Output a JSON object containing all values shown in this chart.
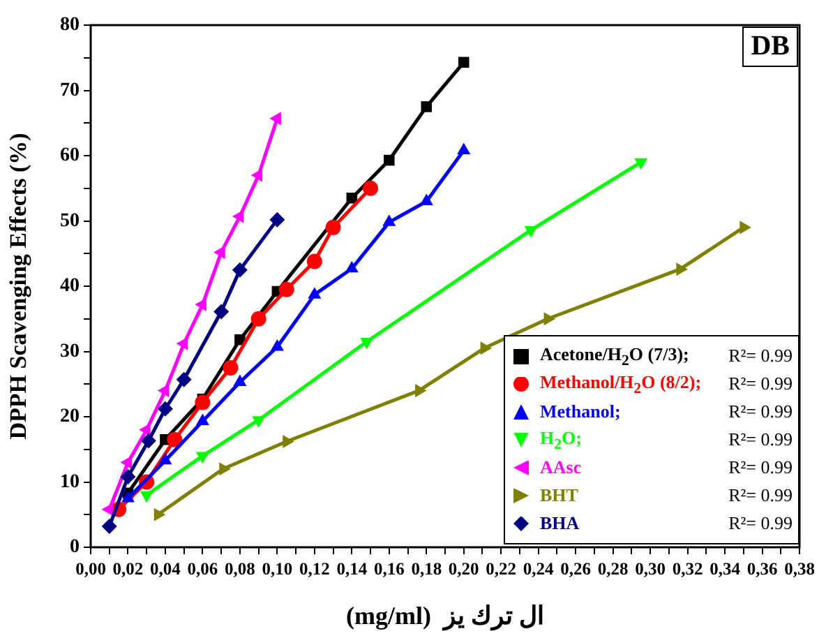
{
  "chart_data": {
    "type": "line",
    "xlabel": "(mg/ml)  ال ترك يز",
    "ylabel": "DPPH Scavenging Effects (%)",
    "annotations": [
      "DB",
      "R²= 0.99",
      "R²= 0.99",
      "R²= 0.99",
      "R²= 0.99",
      "R²= 0.99",
      "R²= 0.99",
      "R²= 0.99"
    ],
    "xlim": [
      0,
      0.38
    ],
    "ylim": [
      0,
      80
    ],
    "xticks": [
      {
        "value": 0,
        "label": "0,00"
      },
      {
        "value": 0.01,
        "label": null
      },
      {
        "value": 0.02,
        "label": "0,02"
      },
      {
        "value": 0.03,
        "label": null
      },
      {
        "value": 0.04,
        "label": "0,04"
      },
      {
        "value": 0.05,
        "label": null
      },
      {
        "value": 0.06,
        "label": "0,06"
      },
      {
        "value": 0.07,
        "label": null
      },
      {
        "value": 0.08,
        "label": "0,08"
      },
      {
        "value": 0.09,
        "label": null
      },
      {
        "value": 0.1,
        "label": "0,10"
      },
      {
        "value": 0.11,
        "label": null
      },
      {
        "value": 0.12,
        "label": "0,12"
      },
      {
        "value": 0.13,
        "label": null
      },
      {
        "value": 0.14,
        "label": "0,14"
      },
      {
        "value": 0.15,
        "label": null
      },
      {
        "value": 0.16,
        "label": "0,16"
      },
      {
        "value": 0.17,
        "label": null
      },
      {
        "value": 0.18,
        "label": "0,18"
      },
      {
        "value": 0.19,
        "label": null
      },
      {
        "value": 0.2,
        "label": "0,20"
      },
      {
        "value": 0.21,
        "label": null
      },
      {
        "value": 0.22,
        "label": "0,22"
      },
      {
        "value": 0.23,
        "label": null
      },
      {
        "value": 0.24,
        "label": "0,24"
      },
      {
        "value": 0.25,
        "label": null
      },
      {
        "value": 0.26,
        "label": "0,26"
      },
      {
        "value": 0.27,
        "label": null
      },
      {
        "value": 0.28,
        "label": "0,28"
      },
      {
        "value": 0.29,
        "label": null
      },
      {
        "value": 0.3,
        "label": "0,30"
      },
      {
        "value": 0.31,
        "label": null
      },
      {
        "value": 0.32,
        "label": "0,32"
      },
      {
        "value": 0.33,
        "label": null
      },
      {
        "value": 0.34,
        "label": "0,34"
      },
      {
        "value": 0.35,
        "label": null
      },
      {
        "value": 0.36,
        "label": "0,36"
      },
      {
        "value": 0.37,
        "label": null
      },
      {
        "value": 0.38,
        "label": "0,38"
      }
    ],
    "yticks": [
      0,
      {
        "value": 5,
        "label": null
      },
      10,
      {
        "value": 15,
        "label": null
      },
      20,
      {
        "value": 25,
        "label": null
      },
      30,
      {
        "value": 35,
        "label": null
      },
      40,
      {
        "value": 45,
        "label": null
      },
      50,
      {
        "value": 55,
        "label": null
      },
      60,
      {
        "value": 65,
        "label": null
      },
      70,
      {
        "value": 75,
        "label": null
      },
      80
    ],
    "grid": false,
    "legend": "bottom right",
    "line_style": "solid",
    "series": [
      {
        "name": "Acetone/H$_{2}$O (7/3);",
        "color": "#000000",
        "marker": "square",
        "x": [
          0.02,
          0.04,
          0.06,
          0.08,
          0.1,
          0.14,
          0.16,
          0.18,
          0.2
        ],
        "values": [
          8.3,
          16.5,
          22.7,
          31.8,
          39.2,
          53.5,
          59.3,
          67.5,
          74.3
        ]
      },
      {
        "name": "Methanol/H$_{2}$O (8/2);",
        "color": "#ff0000",
        "marker": "circle",
        "x": [
          0.015,
          0.03,
          0.045,
          0.06,
          0.075,
          0.09,
          0.105,
          0.12,
          0.13,
          0.15
        ],
        "values": [
          5.8,
          10,
          16.5,
          22.2,
          27.5,
          35,
          39.5,
          43.8,
          49,
          55
        ]
      },
      {
        "name": "Methanol;",
        "color": "#0000ff",
        "marker": "triangle",
        "x": [
          0.02,
          0.04,
          0.06,
          0.08,
          0.1,
          0.12,
          0.14,
          0.16,
          0.18,
          0.2
        ],
        "values": [
          7.5,
          13.3,
          19.3,
          25.3,
          30.7,
          38.7,
          42.7,
          49.8,
          53,
          60.8
        ]
      },
      {
        "name": "H$_{2}$O;",
        "color": "#00ff00",
        "marker": "triangle-down",
        "x": [
          0.03,
          0.06,
          0.09,
          0.148,
          0.236,
          0.295
        ],
        "values": [
          8,
          14,
          19.5,
          31.5,
          48.6,
          59
        ]
      },
      {
        "name": "AAsc",
        "color": "#ff00ff",
        "marker": "triangle-left",
        "x": [
          0.01,
          0.02,
          0.03,
          0.04,
          0.05,
          0.06,
          0.07,
          0.08,
          0.09,
          0.1
        ],
        "values": [
          5.8,
          13,
          18,
          24,
          31.2,
          37.2,
          45.2,
          50.7,
          57,
          65.7
        ]
      },
      {
        "name": "BHT",
        "color": "#808000",
        "marker": "triangle-right",
        "x": [
          0.036,
          0.071,
          0.105,
          0.176,
          0.211,
          0.245,
          0.316,
          0.35
        ],
        "values": [
          5,
          12,
          16.2,
          24,
          30.5,
          35,
          42.6,
          49
        ]
      },
      {
        "name": "BHA",
        "color": "#000080",
        "marker": "diamond",
        "x": [
          0.01,
          0.02,
          0.031,
          0.04,
          0.05,
          0.07,
          0.08,
          0.1
        ],
        "values": [
          3.2,
          10.8,
          16.3,
          21.2,
          25.7,
          36.1,
          42.5,
          50.2
        ]
      }
    ]
  }
}
